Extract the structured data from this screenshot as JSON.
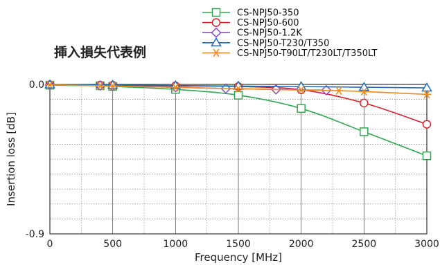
{
  "chart_data": {
    "type": "line",
    "title": "挿入損失代表例",
    "xlabel": "Frequency [MHz]",
    "ylabel": "Insertion loss [dB]",
    "xlim": [
      0,
      3000
    ],
    "ylim": [
      -0.9,
      0.0
    ],
    "x_ticks": [
      0,
      500,
      1000,
      1500,
      2000,
      2500,
      3000
    ],
    "x_tick_labels": [
      "0",
      "500",
      "1000",
      "1500",
      "2000",
      "2500",
      "3000"
    ],
    "y_tick_labels": [
      "0.0",
      "-0.9"
    ],
    "grid": true,
    "legend_position": "top-right",
    "series": [
      {
        "name": "CS-NPJ50-350",
        "color": "#2fa84f",
        "marker": "square",
        "x": [
          0,
          400,
          500,
          1000,
          1500,
          2000,
          2500,
          3000
        ],
        "y": [
          -0.005,
          -0.008,
          -0.012,
          -0.03,
          -0.065,
          -0.145,
          -0.285,
          -0.43
        ]
      },
      {
        "name": "CS-NPJ50-600",
        "color": "#d6202a",
        "marker": "circle",
        "x": [
          0,
          400,
          500,
          1000,
          1500,
          2000,
          2500,
          3000
        ],
        "y": [
          -0.002,
          -0.004,
          -0.005,
          -0.009,
          -0.013,
          -0.032,
          -0.112,
          -0.24
        ]
      },
      {
        "name": "CS-NPJ50-1.2K",
        "color": "#8a4bbf",
        "marker": "diamond",
        "x": [
          0,
          400,
          500,
          1000,
          1400,
          1800,
          2200
        ],
        "y": [
          -0.003,
          -0.007,
          -0.009,
          -0.017,
          -0.025,
          -0.03,
          -0.035
        ]
      },
      {
        "name": "CS-NPJ50-T230/T350",
        "color": "#1f6bb5",
        "marker": "triangle",
        "x": [
          0,
          500,
          1000,
          1500,
          2000,
          2500,
          3000
        ],
        "y": [
          -0.002,
          -0.004,
          -0.007,
          -0.01,
          -0.013,
          -0.017,
          -0.021
        ]
      },
      {
        "name": "CS-NPJ50-T90LT/T230LT/T350LT",
        "color": "#f08a1c",
        "marker": "asterisk",
        "x": [
          0,
          400,
          500,
          1000,
          1500,
          2000,
          2300,
          2500,
          3000
        ],
        "y": [
          -0.003,
          -0.008,
          -0.01,
          -0.018,
          -0.026,
          -0.034,
          -0.038,
          -0.043,
          -0.06
        ]
      }
    ]
  }
}
